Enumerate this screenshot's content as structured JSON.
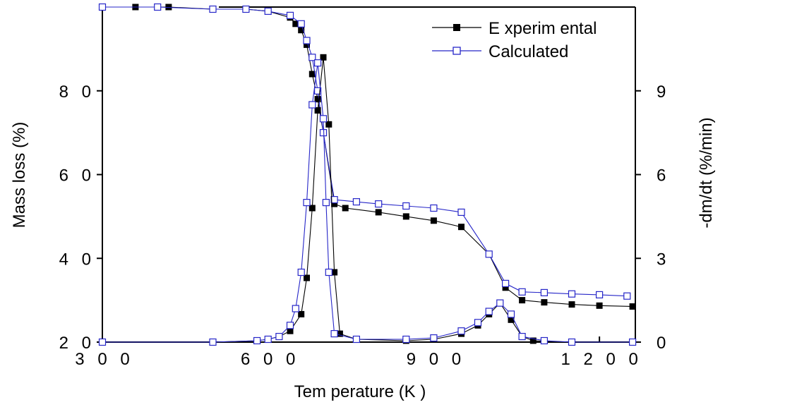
{
  "chart_data": {
    "type": "line",
    "xlabel": "Tem perature (K )",
    "ylabel_left": "Mass loss (%)",
    "ylabel_right": "-dm/dt  (%/min)",
    "xlim": [
      300,
      1265
    ],
    "ylim_left": [
      20,
      100
    ],
    "ylim_right": [
      0,
      12
    ],
    "x_ticks": [
      300,
      600,
      900,
      1200
    ],
    "x_tick_labels": [
      "3 0 0",
      "6 0 0",
      "9 0 0",
      "1 2 0 0"
    ],
    "y_left_ticks": [
      20,
      40,
      60,
      80
    ],
    "y_left_tick_labels": [
      "2 0",
      "4 0",
      "6 0",
      "8 0"
    ],
    "y_right_ticks": [
      0,
      3,
      6,
      9
    ],
    "y_right_tick_labels": [
      "0",
      "3",
      "6",
      "9"
    ],
    "grid": false,
    "legend_position": "top-right",
    "series": [
      {
        "name": "E xperim ental",
        "axis": "left",
        "kind": "mass",
        "color": "#000000",
        "marker": "filled-square",
        "points": [
          [
            300,
            100
          ],
          [
            360,
            100
          ],
          [
            420,
            100
          ],
          [
            500,
            99.5
          ],
          [
            560,
            99.5
          ],
          [
            600,
            99
          ],
          [
            640,
            97.5
          ],
          [
            650,
            96
          ],
          [
            660,
            94.5
          ],
          [
            670,
            91
          ],
          [
            680,
            84
          ],
          [
            690,
            78
          ],
          [
            700,
            70
          ],
          [
            720,
            53
          ],
          [
            740,
            52
          ],
          [
            800,
            51
          ],
          [
            850,
            50
          ],
          [
            900,
            49
          ],
          [
            950,
            47.5
          ],
          [
            1000,
            41
          ],
          [
            1030,
            33
          ],
          [
            1060,
            30
          ],
          [
            1100,
            29.5
          ],
          [
            1150,
            29
          ],
          [
            1200,
            28.7
          ],
          [
            1260,
            28.5
          ]
        ]
      },
      {
        "name": "Calculated",
        "axis": "left",
        "kind": "mass",
        "color": "#2626c8",
        "marker": "open-square",
        "points": [
          [
            300,
            100
          ],
          [
            400,
            100
          ],
          [
            500,
            99.5
          ],
          [
            560,
            99.5
          ],
          [
            600,
            99
          ],
          [
            640,
            98
          ],
          [
            660,
            96
          ],
          [
            670,
            92
          ],
          [
            680,
            88
          ],
          [
            690,
            80
          ],
          [
            700,
            70
          ],
          [
            720,
            54
          ],
          [
            760,
            53.5
          ],
          [
            800,
            53
          ],
          [
            850,
            52.5
          ],
          [
            900,
            52
          ],
          [
            950,
            51
          ],
          [
            1000,
            41
          ],
          [
            1030,
            34
          ],
          [
            1060,
            32
          ],
          [
            1100,
            31.8
          ],
          [
            1150,
            31.5
          ],
          [
            1200,
            31.3
          ],
          [
            1250,
            31
          ]
        ]
      },
      {
        "name": "E xperim ental",
        "axis": "right",
        "kind": "rate",
        "color": "#000000",
        "marker": "filled-square",
        "points": [
          [
            300,
            0
          ],
          [
            500,
            0
          ],
          [
            580,
            0.05
          ],
          [
            600,
            0.1
          ],
          [
            620,
            0.2
          ],
          [
            640,
            0.4
          ],
          [
            660,
            1
          ],
          [
            670,
            2.3
          ],
          [
            680,
            4.8
          ],
          [
            690,
            8.3
          ],
          [
            700,
            10.2
          ],
          [
            710,
            7.8
          ],
          [
            720,
            2.5
          ],
          [
            730,
            0.3
          ],
          [
            760,
            0.1
          ],
          [
            850,
            0.05
          ],
          [
            900,
            0.1
          ],
          [
            950,
            0.3
          ],
          [
            980,
            0.6
          ],
          [
            1000,
            1
          ],
          [
            1020,
            1.4
          ],
          [
            1040,
            0.8
          ],
          [
            1060,
            0.2
          ],
          [
            1080,
            0.05
          ],
          [
            1150,
            0
          ],
          [
            1260,
            0
          ]
        ]
      },
      {
        "name": "Calculated",
        "axis": "right",
        "kind": "rate",
        "color": "#2626c8",
        "marker": "open-square",
        "points": [
          [
            300,
            0
          ],
          [
            500,
            0
          ],
          [
            580,
            0.05
          ],
          [
            600,
            0.1
          ],
          [
            620,
            0.2
          ],
          [
            640,
            0.6
          ],
          [
            650,
            1.2
          ],
          [
            660,
            2.5
          ],
          [
            670,
            5
          ],
          [
            680,
            8.5
          ],
          [
            690,
            10
          ],
          [
            700,
            8
          ],
          [
            705,
            5
          ],
          [
            710,
            2.5
          ],
          [
            720,
            0.3
          ],
          [
            760,
            0.1
          ],
          [
            850,
            0.1
          ],
          [
            900,
            0.15
          ],
          [
            950,
            0.4
          ],
          [
            980,
            0.7
          ],
          [
            1000,
            1.1
          ],
          [
            1020,
            1.4
          ],
          [
            1040,
            1
          ],
          [
            1060,
            0.2
          ],
          [
            1100,
            0.05
          ],
          [
            1150,
            0
          ],
          [
            1260,
            0
          ]
        ]
      }
    ]
  }
}
